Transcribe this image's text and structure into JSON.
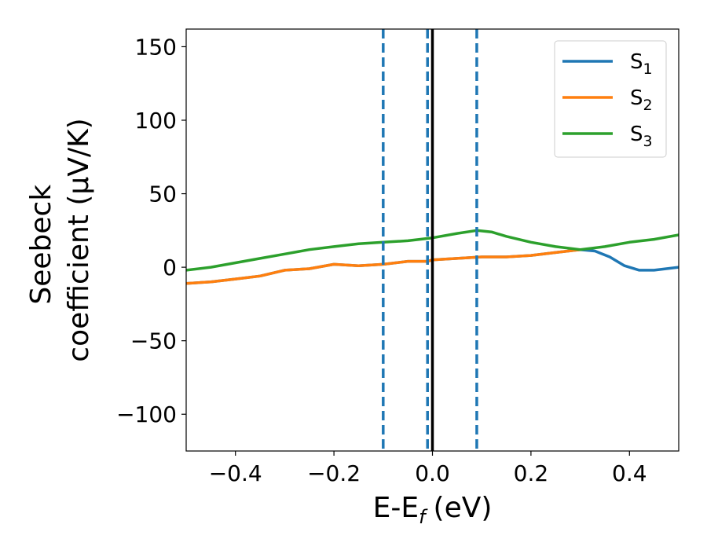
{
  "chart_data": {
    "type": "line",
    "title": "",
    "xlabel": "E-E",
    "xlabel_sub": "f",
    "xlabel_unit": "(eV)",
    "ylabel_line1": "Seebeck",
    "ylabel_line2": "coefficient  (μV/K)",
    "xlim": [
      -0.5,
      0.5
    ],
    "ylim": [
      -125,
      162
    ],
    "xticks": [
      -0.4,
      -0.2,
      0.0,
      0.2,
      0.4
    ],
    "xtick_labels": [
      "−0.4",
      "−0.2",
      "0.0",
      "0.2",
      "0.4"
    ],
    "yticks": [
      -100,
      -50,
      0,
      50,
      100,
      150
    ],
    "ytick_labels": [
      "−100",
      "−50",
      "0",
      "50",
      "100",
      "150"
    ],
    "grid": false,
    "legend_position": "top-right",
    "series": [
      {
        "name": "S",
        "sub": "1",
        "color": "#1f77b4",
        "x": [
          -0.5,
          -0.45,
          -0.4,
          -0.35,
          -0.3,
          -0.25,
          -0.2,
          -0.15,
          -0.1,
          -0.05,
          -0.01,
          0.0,
          0.05,
          0.1,
          0.15,
          0.2,
          0.25,
          0.3,
          0.33,
          0.36,
          0.39,
          0.42,
          0.45,
          0.5
        ],
        "y": [
          -11,
          -10,
          -8,
          -6,
          -2,
          -1,
          2,
          1,
          2,
          4,
          4,
          5,
          6,
          7,
          7,
          8,
          10,
          12,
          11,
          7,
          1,
          -2,
          -2,
          0
        ]
      },
      {
        "name": "S",
        "sub": "2",
        "color": "#ff7f0e",
        "x": [
          -0.5,
          -0.45,
          -0.4,
          -0.35,
          -0.3,
          -0.25,
          -0.2,
          -0.15,
          -0.1,
          -0.05,
          -0.01,
          0.0,
          0.05,
          0.1,
          0.15,
          0.2,
          0.25,
          0.3
        ],
        "y": [
          -11,
          -10,
          -8,
          -6,
          -2,
          -1,
          2,
          1,
          2,
          4,
          4,
          5,
          6,
          7,
          7,
          8,
          10,
          12
        ]
      },
      {
        "name": "S",
        "sub": "3",
        "color": "#2ca02c",
        "x": [
          -0.5,
          -0.45,
          -0.4,
          -0.35,
          -0.3,
          -0.25,
          -0.2,
          -0.15,
          -0.1,
          -0.05,
          0.0,
          0.05,
          0.09,
          0.12,
          0.15,
          0.2,
          0.25,
          0.3,
          0.35,
          0.4,
          0.45,
          0.5
        ],
        "y": [
          -2,
          0,
          3,
          6,
          9,
          12,
          14,
          16,
          17,
          18,
          20,
          23,
          25,
          24,
          21,
          17,
          14,
          12,
          14,
          17,
          19,
          22
        ]
      }
    ],
    "vlines": [
      {
        "x": -0.1,
        "style": "dashed",
        "color": "#1f77b4"
      },
      {
        "x": -0.01,
        "style": "dashed",
        "color": "#1f77b4"
      },
      {
        "x": 0.09,
        "style": "dashed",
        "color": "#1f77b4"
      },
      {
        "x": 0.0,
        "style": "solid",
        "color": "#000000"
      }
    ]
  }
}
